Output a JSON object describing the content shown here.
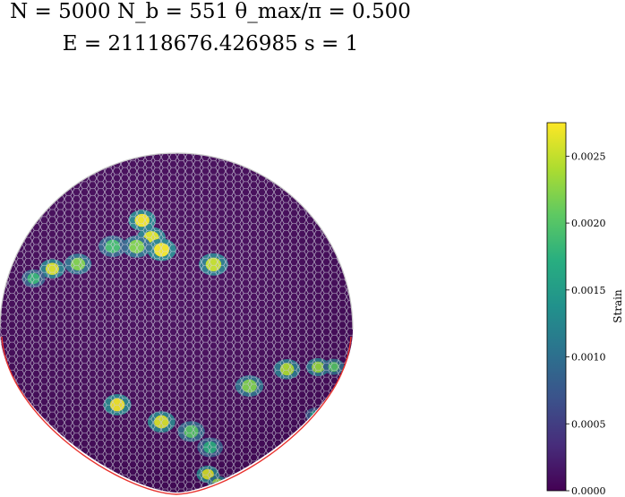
{
  "title": {
    "line1": "N = 5000    N_b = 551    θ_max/π = 0.500",
    "line2": "E = 21118676.426985    s = 1"
  },
  "chart_data": {
    "type": "heatmap",
    "description_free": true,
    "colorbar": {
      "label": "Strain",
      "colormap": "viridis",
      "range": [
        0.0,
        0.00275
      ],
      "ticks": [
        {
          "value": 0.0,
          "label": "0.0000"
        },
        {
          "value": 0.0005,
          "label": "0.0005"
        },
        {
          "value": 0.001,
          "label": "0.0010"
        },
        {
          "value": 0.0015,
          "label": "0.0015"
        },
        {
          "value": 0.002,
          "label": "0.0020"
        },
        {
          "value": 0.0025,
          "label": "0.0025"
        }
      ]
    },
    "sphere": {
      "background_strain": 5e-05,
      "boundary_color": "#e8322e",
      "grid_color": "#d8d8e8"
    },
    "hotspots": [
      {
        "lon": -25,
        "lat": 62,
        "strain": 0.0027
      },
      {
        "lon": -15,
        "lat": 56,
        "strain": 0.0026
      },
      {
        "lon": -8,
        "lat": 52,
        "strain": 0.0027
      },
      {
        "lon": -22,
        "lat": 52,
        "strain": 0.0022
      },
      {
        "lon": -35,
        "lat": 50,
        "strain": 0.0019
      },
      {
        "lon": 18,
        "lat": 46,
        "strain": 0.0025
      },
      {
        "lon": -48,
        "lat": 40,
        "strain": 0.0022
      },
      {
        "lon": -60,
        "lat": 34,
        "strain": 0.0026
      },
      {
        "lon": -68,
        "lat": 27,
        "strain": 0.0018
      },
      {
        "lon": 25,
        "lat": 3,
        "strain": 0.0022
      },
      {
        "lon": 40,
        "lat": 5,
        "strain": 0.0024
      },
      {
        "lon": 55,
        "lat": 0,
        "strain": 0.0023
      },
      {
        "lon": 66,
        "lat": -5,
        "strain": 0.002
      },
      {
        "lon": -20,
        "lat": -3,
        "strain": 0.0027
      },
      {
        "lon": -5,
        "lat": -8,
        "strain": 0.0026
      },
      {
        "lon": 5,
        "lat": -12,
        "strain": 0.002
      },
      {
        "lon": 12,
        "lat": -20,
        "strain": 0.0017
      },
      {
        "lon": 13,
        "lat": -36,
        "strain": 0.0026
      },
      {
        "lon": 20,
        "lat": -46,
        "strain": 0.0023
      },
      {
        "lon": 28,
        "lat": -60,
        "strain": 0.002
      },
      {
        "lon": 60,
        "lat": -22,
        "strain": 0.0015
      },
      {
        "lon": -80,
        "lat": -38,
        "strain": 0.0014
      },
      {
        "lon": -60,
        "lat": -58,
        "strain": 0.0017
      },
      {
        "lon": -30,
        "lat": -70,
        "strain": 0.0018
      }
    ]
  }
}
